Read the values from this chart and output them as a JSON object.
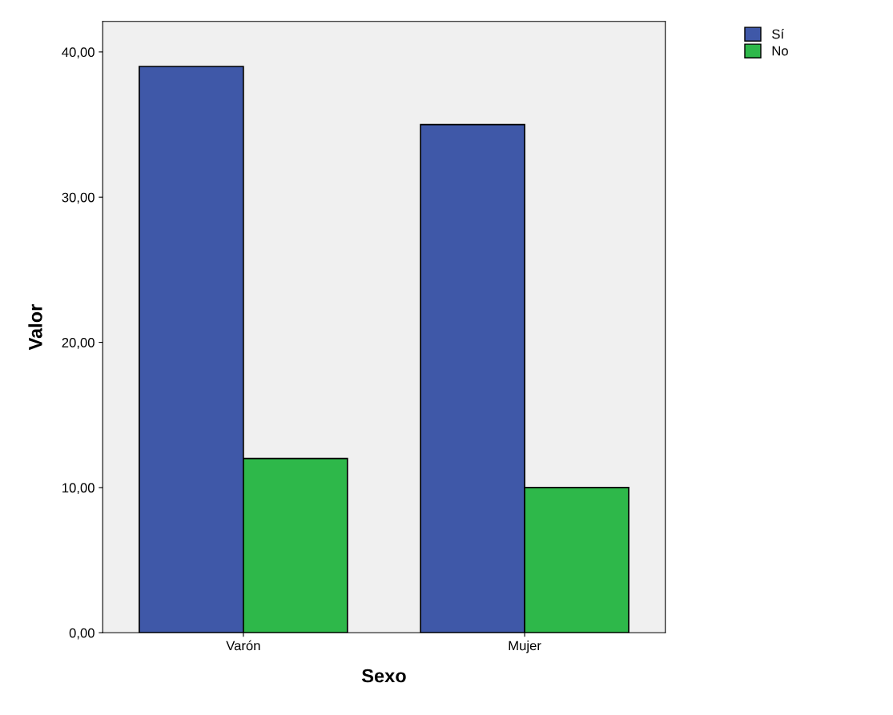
{
  "chart_data": {
    "type": "bar",
    "xlabel": "Sexo",
    "ylabel": "Valor",
    "categories": [
      "Varón",
      "Mujer"
    ],
    "series": [
      {
        "name": "Sí",
        "color": "#3f58a8",
        "values": [
          39,
          35
        ]
      },
      {
        "name": "No",
        "color": "#2eb84a",
        "values": [
          12,
          10
        ]
      }
    ],
    "ylim": [
      0,
      42.1
    ],
    "yticks": [
      {
        "value": 0,
        "label": "0,00"
      },
      {
        "value": 10,
        "label": "10,00"
      },
      {
        "value": 20,
        "label": "20,00"
      },
      {
        "value": 30,
        "label": "30,00"
      },
      {
        "value": 40,
        "label": "40,00"
      }
    ],
    "grid": false,
    "legend": "top right"
  }
}
